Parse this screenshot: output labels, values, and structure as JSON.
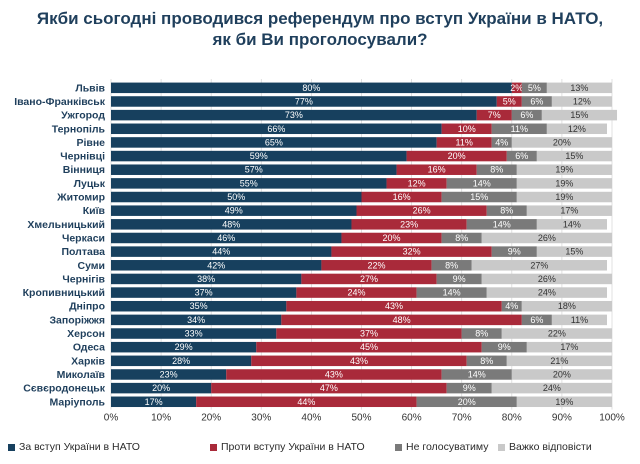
{
  "chart_data": {
    "type": "bar",
    "stacked": "horizontal-100",
    "title_lines": [
      "Якби сьогодні проводився референдум про вступ України в НАТО,",
      "як би Ви проголосували?"
    ],
    "categories": [
      "Львів",
      "Івано-Франківськ",
      "Ужгород",
      "Тернопіль",
      "Рівне",
      "Чернівці",
      "Вінниця",
      "Луцьк",
      "Житомир",
      "Київ",
      "Хмельницький",
      "Черкаси",
      "Полтава",
      "Суми",
      "Чернігів",
      "Кропивницький",
      "Дніпро",
      "Запоріжжя",
      "Херсон",
      "Одеса",
      "Харків",
      "Миколаїв",
      "Сєвєродонецьк",
      "Маріуполь"
    ],
    "series": [
      {
        "name": "За вступ України в НАТО",
        "color": "#17405e",
        "label_color": "#ffffff",
        "values": [
          80,
          77,
          73,
          66,
          65,
          59,
          57,
          55,
          50,
          49,
          48,
          46,
          44,
          42,
          38,
          37,
          35,
          34,
          33,
          29,
          28,
          23,
          20,
          17
        ]
      },
      {
        "name": "Проти вступу України в НАТО",
        "color": "#a92a3a",
        "label_color": "#ffffff",
        "values": [
          2,
          5,
          7,
          10,
          11,
          20,
          16,
          12,
          16,
          26,
          23,
          20,
          32,
          22,
          27,
          24,
          43,
          48,
          37,
          45,
          43,
          43,
          47,
          44
        ]
      },
      {
        "name": "Не голосуватиму",
        "color": "#7a7a7a",
        "label_color": "#ffffff",
        "values": [
          5,
          6,
          6,
          11,
          4,
          6,
          8,
          14,
          15,
          8,
          14,
          8,
          9,
          8,
          9,
          14,
          4,
          6,
          8,
          9,
          8,
          14,
          9,
          20
        ]
      },
      {
        "name": "Важко відповісти",
        "color": "#c9c9c9",
        "label_color": "#333333",
        "values": [
          13,
          12,
          15,
          12,
          20,
          15,
          19,
          19,
          19,
          17,
          14,
          26,
          15,
          27,
          26,
          24,
          18,
          11,
          22,
          17,
          21,
          20,
          24,
          19
        ]
      }
    ],
    "x_ticks": [
      "0%",
      "10%",
      "20%",
      "30%",
      "40%",
      "50%",
      "60%",
      "70%",
      "80%",
      "90%",
      "100%"
    ],
    "xlim": [
      0,
      100
    ],
    "legend_position": "bottom",
    "grid": true
  }
}
